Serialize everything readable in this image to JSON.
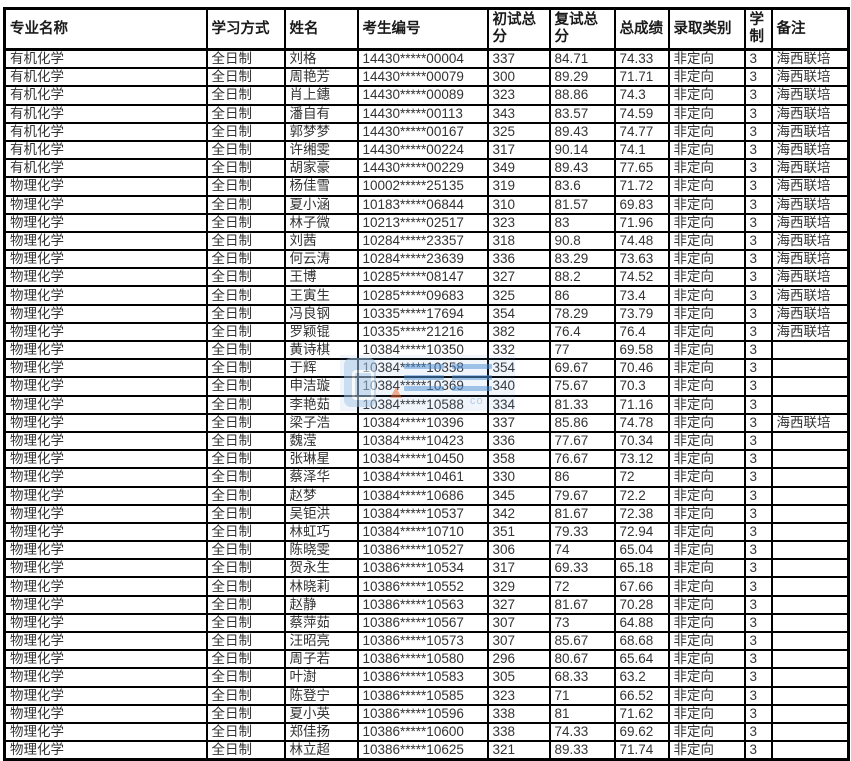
{
  "page": {
    "background": "#ffffff",
    "grid_line_color": "#000000",
    "text_color": "#333333"
  },
  "watermark": {
    "letters": "co",
    "accent_blue": "#4f8fd6",
    "light_blue": "#9fc3e7",
    "accent_orange": "#e06a3a"
  },
  "table": {
    "columns": [
      {
        "key": "major",
        "label": "专业名称"
      },
      {
        "key": "mode",
        "label": "学习方式"
      },
      {
        "key": "name",
        "label": "姓名"
      },
      {
        "key": "candidate_no",
        "label": "考生编号"
      },
      {
        "key": "initial_total",
        "label": "初试总分"
      },
      {
        "key": "retest_total",
        "label": "复试总分"
      },
      {
        "key": "total_score",
        "label": "总成绩"
      },
      {
        "key": "admission_type",
        "label": "录取类别"
      },
      {
        "key": "duration",
        "label": "学制"
      },
      {
        "key": "note",
        "label": "备注"
      }
    ],
    "rows": [
      {
        "major": "有机化学",
        "mode": "全日制",
        "name": "刘格",
        "candidate_no": "14430*****00004",
        "initial_total": "337",
        "retest_total": "84.71",
        "total_score": "74.33",
        "admission_type": "非定向",
        "duration": "3",
        "note": "海西联培"
      },
      {
        "major": "有机化学",
        "mode": "全日制",
        "name": "周艳芳",
        "candidate_no": "14430*****00079",
        "initial_total": "300",
        "retest_total": "89.29",
        "total_score": "71.71",
        "admission_type": "非定向",
        "duration": "3",
        "note": "海西联培"
      },
      {
        "major": "有机化学",
        "mode": "全日制",
        "name": "肖上鏸",
        "candidate_no": "14430*****00089",
        "initial_total": "323",
        "retest_total": "88.86",
        "total_score": "74.3",
        "admission_type": "非定向",
        "duration": "3",
        "note": "海西联培"
      },
      {
        "major": "有机化学",
        "mode": "全日制",
        "name": "潘自有",
        "candidate_no": "14430*****00113",
        "initial_total": "343",
        "retest_total": "83.57",
        "total_score": "74.59",
        "admission_type": "非定向",
        "duration": "3",
        "note": "海西联培"
      },
      {
        "major": "有机化学",
        "mode": "全日制",
        "name": "郭梦梦",
        "candidate_no": "14430*****00167",
        "initial_total": "325",
        "retest_total": "89.43",
        "total_score": "74.77",
        "admission_type": "非定向",
        "duration": "3",
        "note": "海西联培"
      },
      {
        "major": "有机化学",
        "mode": "全日制",
        "name": "许缃雯",
        "candidate_no": "14430*****00224",
        "initial_total": "317",
        "retest_total": "90.14",
        "total_score": "74.1",
        "admission_type": "非定向",
        "duration": "3",
        "note": "海西联培"
      },
      {
        "major": "有机化学",
        "mode": "全日制",
        "name": "胡家豪",
        "candidate_no": "14430*****00229",
        "initial_total": "349",
        "retest_total": "89.43",
        "total_score": "77.65",
        "admission_type": "非定向",
        "duration": "3",
        "note": "海西联培"
      },
      {
        "major": "物理化学",
        "mode": "全日制",
        "name": "杨佳雪",
        "candidate_no": "10002*****25135",
        "initial_total": "319",
        "retest_total": "83.6",
        "total_score": "71.72",
        "admission_type": "非定向",
        "duration": "3",
        "note": "海西联培"
      },
      {
        "major": "物理化学",
        "mode": "全日制",
        "name": "夏小涵",
        "candidate_no": "10183*****06844",
        "initial_total": "310",
        "retest_total": "81.57",
        "total_score": "69.83",
        "admission_type": "非定向",
        "duration": "3",
        "note": "海西联培"
      },
      {
        "major": "物理化学",
        "mode": "全日制",
        "name": "林子微",
        "candidate_no": "10213*****02517",
        "initial_total": "323",
        "retest_total": "83",
        "total_score": "71.96",
        "admission_type": "非定向",
        "duration": "3",
        "note": "海西联培"
      },
      {
        "major": "物理化学",
        "mode": "全日制",
        "name": "刘茜",
        "candidate_no": "10284*****23357",
        "initial_total": "318",
        "retest_total": "90.8",
        "total_score": "74.48",
        "admission_type": "非定向",
        "duration": "3",
        "note": "海西联培"
      },
      {
        "major": "物理化学",
        "mode": "全日制",
        "name": "何云涛",
        "candidate_no": "10284*****23639",
        "initial_total": "336",
        "retest_total": "83.29",
        "total_score": "73.63",
        "admission_type": "非定向",
        "duration": "3",
        "note": "海西联培"
      },
      {
        "major": "物理化学",
        "mode": "全日制",
        "name": "王博",
        "candidate_no": "10285*****08147",
        "initial_total": "327",
        "retest_total": "88.2",
        "total_score": "74.52",
        "admission_type": "非定向",
        "duration": "3",
        "note": "海西联培"
      },
      {
        "major": "物理化学",
        "mode": "全日制",
        "name": "王寅生",
        "candidate_no": "10285*****09683",
        "initial_total": "325",
        "retest_total": "86",
        "total_score": "73.4",
        "admission_type": "非定向",
        "duration": "3",
        "note": "海西联培"
      },
      {
        "major": "物理化学",
        "mode": "全日制",
        "name": "冯良钢",
        "candidate_no": "10335*****17694",
        "initial_total": "354",
        "retest_total": "78.29",
        "total_score": "73.79",
        "admission_type": "非定向",
        "duration": "3",
        "note": "海西联培"
      },
      {
        "major": "物理化学",
        "mode": "全日制",
        "name": "罗颖锟",
        "candidate_no": "10335*****21216",
        "initial_total": "382",
        "retest_total": "76.4",
        "total_score": "76.4",
        "admission_type": "非定向",
        "duration": "3",
        "note": "海西联培"
      },
      {
        "major": "物理化学",
        "mode": "全日制",
        "name": "黄诗棋",
        "candidate_no": "10384*****10350",
        "initial_total": "332",
        "retest_total": "77",
        "total_score": "69.58",
        "admission_type": "非定向",
        "duration": "3",
        "note": ""
      },
      {
        "major": "物理化学",
        "mode": "全日制",
        "name": "于辉",
        "candidate_no": "10384*****10358",
        "initial_total": "354",
        "retest_total": "69.67",
        "total_score": "70.46",
        "admission_type": "非定向",
        "duration": "3",
        "note": ""
      },
      {
        "major": "物理化学",
        "mode": "全日制",
        "name": "申洁璇",
        "candidate_no": "10384*****10369",
        "initial_total": "340",
        "retest_total": "75.67",
        "total_score": "70.3",
        "admission_type": "非定向",
        "duration": "3",
        "note": ""
      },
      {
        "major": "物理化学",
        "mode": "全日制",
        "name": "李艳茹",
        "candidate_no": "10384*****10588",
        "initial_total": "334",
        "retest_total": "81.33",
        "total_score": "71.16",
        "admission_type": "非定向",
        "duration": "3",
        "note": ""
      },
      {
        "major": "物理化学",
        "mode": "全日制",
        "name": "梁子浩",
        "candidate_no": "10384*****10396",
        "initial_total": "337",
        "retest_total": "85.86",
        "total_score": "74.78",
        "admission_type": "非定向",
        "duration": "3",
        "note": "海西联培"
      },
      {
        "major": "物理化学",
        "mode": "全日制",
        "name": "魏滢",
        "candidate_no": "10384*****10423",
        "initial_total": "336",
        "retest_total": "77.67",
        "total_score": "70.34",
        "admission_type": "非定向",
        "duration": "3",
        "note": ""
      },
      {
        "major": "物理化学",
        "mode": "全日制",
        "name": "张琳星",
        "candidate_no": "10384*****10450",
        "initial_total": "358",
        "retest_total": "76.67",
        "total_score": "73.12",
        "admission_type": "非定向",
        "duration": "3",
        "note": ""
      },
      {
        "major": "物理化学",
        "mode": "全日制",
        "name": "蔡泽华",
        "candidate_no": "10384*****10461",
        "initial_total": "330",
        "retest_total": "86",
        "total_score": "72",
        "admission_type": "非定向",
        "duration": "3",
        "note": ""
      },
      {
        "major": "物理化学",
        "mode": "全日制",
        "name": "赵梦",
        "candidate_no": "10384*****10686",
        "initial_total": "345",
        "retest_total": "79.67",
        "total_score": "72.2",
        "admission_type": "非定向",
        "duration": "3",
        "note": ""
      },
      {
        "major": "物理化学",
        "mode": "全日制",
        "name": "吴钜洪",
        "candidate_no": "10384*****10537",
        "initial_total": "342",
        "retest_total": "81.67",
        "total_score": "72.38",
        "admission_type": "非定向",
        "duration": "3",
        "note": ""
      },
      {
        "major": "物理化学",
        "mode": "全日制",
        "name": "林虹巧",
        "candidate_no": "10384*****10710",
        "initial_total": "351",
        "retest_total": "79.33",
        "total_score": "72.94",
        "admission_type": "非定向",
        "duration": "3",
        "note": ""
      },
      {
        "major": "物理化学",
        "mode": "全日制",
        "name": "陈晓雯",
        "candidate_no": "10386*****10527",
        "initial_total": "306",
        "retest_total": "74",
        "total_score": "65.04",
        "admission_type": "非定向",
        "duration": "3",
        "note": ""
      },
      {
        "major": "物理化学",
        "mode": "全日制",
        "name": "贺永生",
        "candidate_no": "10386*****10534",
        "initial_total": "317",
        "retest_total": "69.33",
        "total_score": "65.18",
        "admission_type": "非定向",
        "duration": "3",
        "note": ""
      },
      {
        "major": "物理化学",
        "mode": "全日制",
        "name": "林晓莉",
        "candidate_no": "10386*****10552",
        "initial_total": "329",
        "retest_total": "72",
        "total_score": "67.66",
        "admission_type": "非定向",
        "duration": "3",
        "note": ""
      },
      {
        "major": "物理化学",
        "mode": "全日制",
        "name": "赵静",
        "candidate_no": "10386*****10563",
        "initial_total": "327",
        "retest_total": "81.67",
        "total_score": "70.28",
        "admission_type": "非定向",
        "duration": "3",
        "note": ""
      },
      {
        "major": "物理化学",
        "mode": "全日制",
        "name": "蔡萍茹",
        "candidate_no": "10386*****10567",
        "initial_total": "307",
        "retest_total": "73",
        "total_score": "64.88",
        "admission_type": "非定向",
        "duration": "3",
        "note": ""
      },
      {
        "major": "物理化学",
        "mode": "全日制",
        "name": "汪昭亮",
        "candidate_no": "10386*****10573",
        "initial_total": "307",
        "retest_total": "85.67",
        "total_score": "68.68",
        "admission_type": "非定向",
        "duration": "3",
        "note": ""
      },
      {
        "major": "物理化学",
        "mode": "全日制",
        "name": "周子若",
        "candidate_no": "10386*****10580",
        "initial_total": "296",
        "retest_total": "80.67",
        "total_score": "65.64",
        "admission_type": "非定向",
        "duration": "3",
        "note": ""
      },
      {
        "major": "物理化学",
        "mode": "全日制",
        "name": "叶澍",
        "candidate_no": "10386*****10583",
        "initial_total": "305",
        "retest_total": "68.33",
        "total_score": "63.2",
        "admission_type": "非定向",
        "duration": "3",
        "note": ""
      },
      {
        "major": "物理化学",
        "mode": "全日制",
        "name": "陈登宁",
        "candidate_no": "10386*****10585",
        "initial_total": "323",
        "retest_total": "71",
        "total_score": "66.52",
        "admission_type": "非定向",
        "duration": "3",
        "note": ""
      },
      {
        "major": "物理化学",
        "mode": "全日制",
        "name": "夏小英",
        "candidate_no": "10386*****10596",
        "initial_total": "338",
        "retest_total": "81",
        "total_score": "71.62",
        "admission_type": "非定向",
        "duration": "3",
        "note": ""
      },
      {
        "major": "物理化学",
        "mode": "全日制",
        "name": "郑佳扬",
        "candidate_no": "10386*****10600",
        "initial_total": "338",
        "retest_total": "74.33",
        "total_score": "69.62",
        "admission_type": "非定向",
        "duration": "3",
        "note": ""
      },
      {
        "major": "物理化学",
        "mode": "全日制",
        "name": "林立超",
        "candidate_no": "10386*****10625",
        "initial_total": "321",
        "retest_total": "89.33",
        "total_score": "71.74",
        "admission_type": "非定向",
        "duration": "3",
        "note": ""
      }
    ]
  }
}
